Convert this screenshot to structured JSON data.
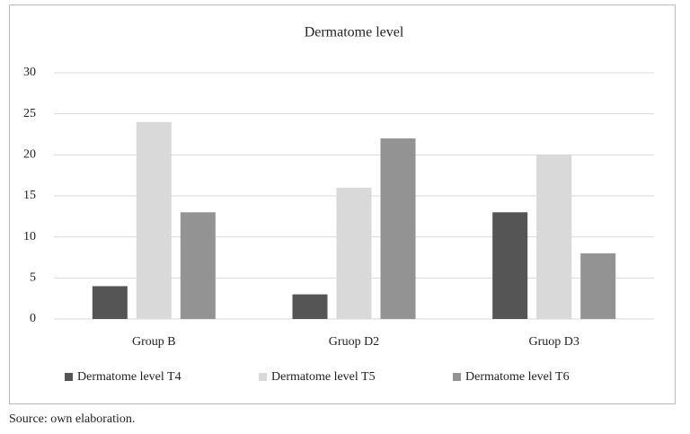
{
  "chart_data": {
    "type": "bar",
    "title": "Dermatome level",
    "categories": [
      "Group B",
      "Gruop D2",
      "Gruop D3"
    ],
    "series": [
      {
        "name": "Dermatome level T4",
        "color": "#555555",
        "values": [
          4,
          3,
          13
        ]
      },
      {
        "name": "Dermatome level T5",
        "color": "#d9d9d9",
        "values": [
          24,
          16,
          20
        ]
      },
      {
        "name": "Dermatome level T6",
        "color": "#939393",
        "values": [
          13,
          22,
          8
        ]
      }
    ],
    "ylim": [
      0,
      30
    ],
    "yticks": [
      0,
      5,
      10,
      15,
      20,
      25,
      30
    ],
    "grid": true,
    "legend": "bottom"
  },
  "source": "Source: own elaboration."
}
